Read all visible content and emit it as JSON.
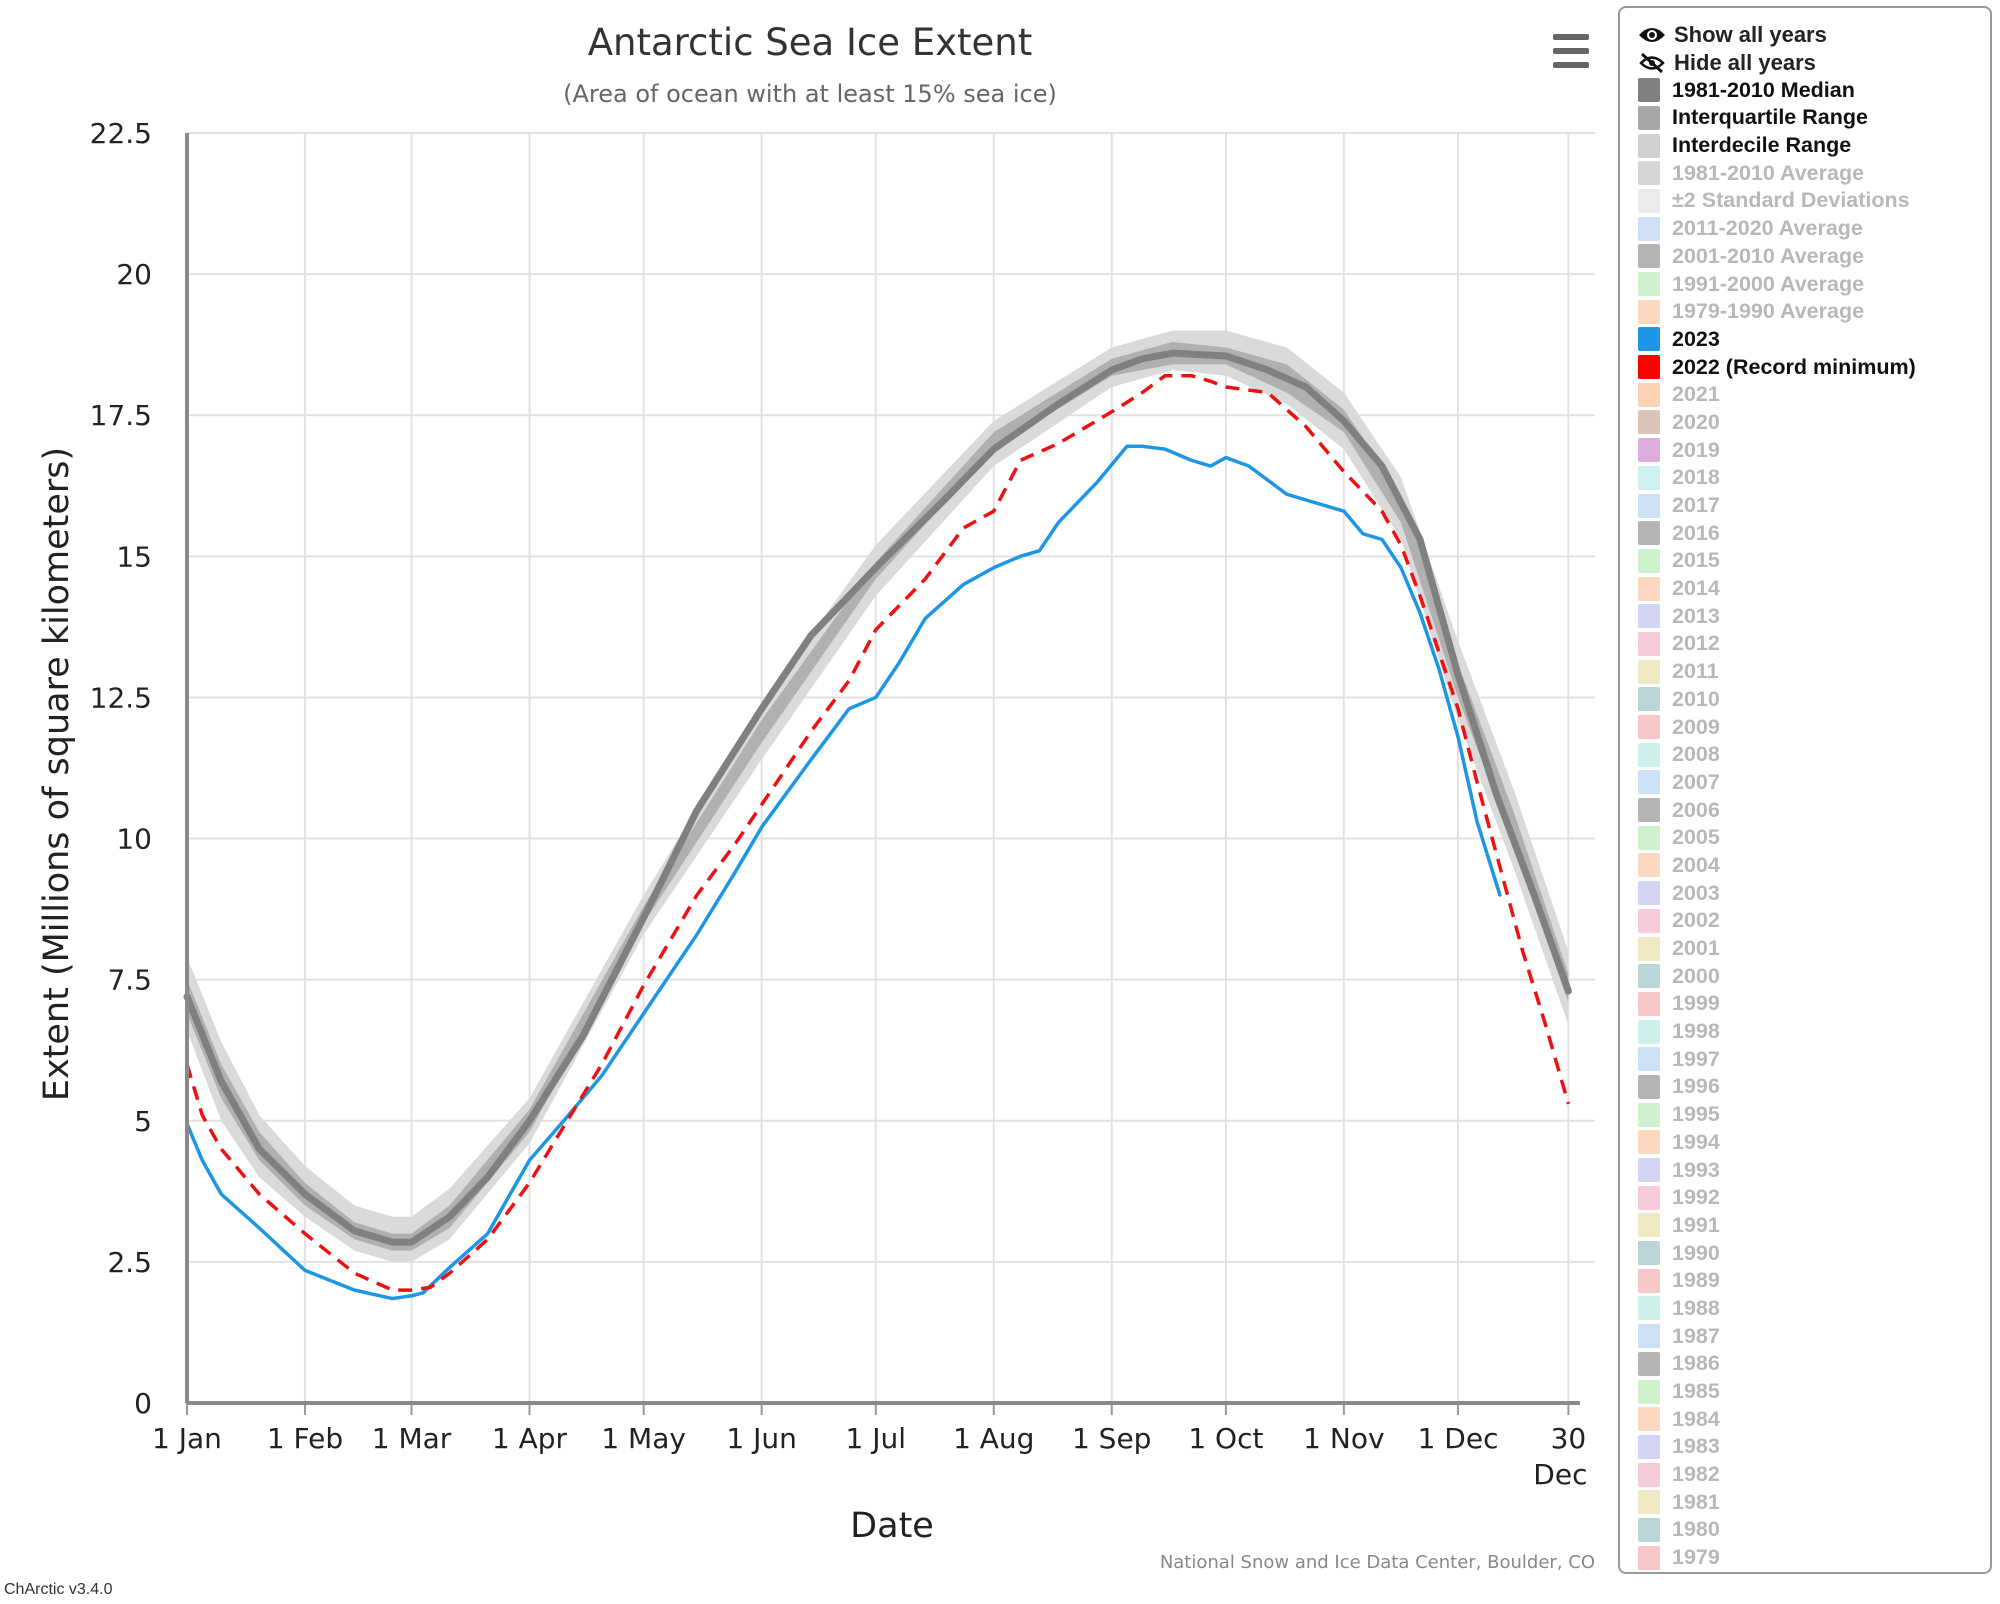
{
  "chart_data": {
    "type": "line",
    "title": "Antarctic Sea Ice Extent",
    "subtitle": "(Area of ocean with at least 15% sea ice)",
    "xlabel": "Date",
    "ylabel": "Extent (Millions of square kilometers)",
    "ylim": [
      0,
      22.5
    ],
    "xlim_days": [
      1,
      366
    ],
    "y_ticks": [
      "0",
      "2.5",
      "5",
      "7.5",
      "10",
      "12.5",
      "15",
      "17.5",
      "20",
      "22.5"
    ],
    "x_ticks": [
      {
        "label": "1 Jan",
        "day": 1
      },
      {
        "label": "1 Feb",
        "day": 32
      },
      {
        "label": "1 Mar",
        "day": 60
      },
      {
        "label": "1 Apr",
        "day": 91
      },
      {
        "label": "1 May",
        "day": 121
      },
      {
        "label": "1 Jun",
        "day": 152
      },
      {
        "label": "1 Jul",
        "day": 182
      },
      {
        "label": "1 Aug",
        "day": 213
      },
      {
        "label": "1 Sep",
        "day": 244
      },
      {
        "label": "1 Oct",
        "day": 274
      },
      {
        "label": "1 Nov",
        "day": 305
      },
      {
        "label": "1 Dec",
        "day": 335
      },
      {
        "label": "30",
        "sublabel": "Dec",
        "day": 364
      }
    ],
    "grid": true,
    "credits": "National Snow and Ice Data Center, Boulder, CO",
    "series": [
      {
        "name": "Interdecile Range",
        "kind": "band",
        "color": "#dadada",
        "x": [
          1,
          10,
          20,
          32,
          45,
          55,
          60,
          70,
          91,
          121,
          152,
          182,
          213,
          244,
          260,
          274,
          290,
          305,
          320,
          335,
          350,
          364
        ],
        "low": [
          6.6,
          5.0,
          4.0,
          3.3,
          2.7,
          2.5,
          2.5,
          2.9,
          4.6,
          8.3,
          11.4,
          14.3,
          16.6,
          18.0,
          18.3,
          18.2,
          17.7,
          16.9,
          15.3,
          12.1,
          9.4,
          6.7
        ],
        "high": [
          7.9,
          6.4,
          5.1,
          4.2,
          3.5,
          3.3,
          3.3,
          3.8,
          5.4,
          9.0,
          12.4,
          15.2,
          17.4,
          18.7,
          19.0,
          19.0,
          18.7,
          17.9,
          16.4,
          13.5,
          10.8,
          8.0
        ]
      },
      {
        "name": "Interquartile Range",
        "kind": "band",
        "color": "#b0b0b0",
        "x": [
          1,
          10,
          20,
          32,
          45,
          55,
          60,
          70,
          91,
          121,
          152,
          182,
          213,
          244,
          260,
          274,
          290,
          305,
          320,
          335,
          350,
          364
        ],
        "low": [
          6.9,
          5.4,
          4.3,
          3.5,
          2.9,
          2.7,
          2.7,
          3.1,
          4.8,
          8.5,
          11.7,
          14.6,
          16.9,
          18.2,
          18.4,
          18.4,
          17.9,
          17.2,
          15.6,
          12.5,
          9.8,
          7.1
        ],
        "high": [
          7.5,
          6.0,
          4.8,
          3.9,
          3.2,
          3.0,
          3.0,
          3.5,
          5.2,
          8.8,
          12.1,
          14.9,
          17.2,
          18.5,
          18.8,
          18.7,
          18.4,
          17.6,
          16.1,
          13.1,
          10.4,
          7.6
        ]
      },
      {
        "name": "1981-2010 Median",
        "kind": "line",
        "color": "#808080",
        "x": [
          1,
          10,
          20,
          32,
          45,
          55,
          60,
          70,
          80,
          91,
          105,
          121,
          135,
          152,
          165,
          182,
          200,
          213,
          230,
          244,
          252,
          260,
          274,
          285,
          295,
          305,
          315,
          325,
          335,
          345,
          355,
          364
        ],
        "values": [
          7.2,
          5.7,
          4.5,
          3.7,
          3.05,
          2.85,
          2.85,
          3.3,
          4.0,
          5.0,
          6.5,
          8.6,
          10.5,
          12.3,
          13.6,
          14.8,
          16.0,
          16.9,
          17.7,
          18.3,
          18.5,
          18.6,
          18.55,
          18.3,
          18.0,
          17.4,
          16.6,
          15.3,
          12.9,
          10.8,
          9.0,
          7.3
        ]
      },
      {
        "name": "2023",
        "kind": "line",
        "color": "#1d96e6",
        "x": [
          1,
          5,
          10,
          20,
          32,
          45,
          55,
          60,
          63,
          70,
          80,
          91,
          100,
          110,
          121,
          135,
          145,
          152,
          165,
          175,
          182,
          188,
          195,
          205,
          213,
          220,
          225,
          230,
          240,
          248,
          252,
          258,
          265,
          270,
          274,
          280,
          290,
          300,
          305,
          310,
          315,
          320,
          325,
          330,
          335,
          340,
          346
        ],
        "values": [
          4.95,
          4.3,
          3.7,
          3.1,
          2.35,
          2.0,
          1.85,
          1.9,
          1.95,
          2.4,
          3.0,
          4.3,
          5.0,
          5.8,
          6.9,
          8.3,
          9.4,
          10.2,
          11.4,
          12.3,
          12.5,
          13.1,
          13.9,
          14.5,
          14.8,
          15.0,
          15.1,
          15.6,
          16.3,
          16.95,
          16.95,
          16.9,
          16.7,
          16.6,
          16.75,
          16.6,
          16.1,
          15.9,
          15.8,
          15.4,
          15.3,
          14.8,
          14.0,
          13.0,
          11.8,
          10.3,
          9.0
        ]
      },
      {
        "name": "2022 (Record minimum)",
        "kind": "line",
        "dashed": true,
        "color": "#ee1111",
        "x": [
          1,
          5,
          10,
          20,
          32,
          45,
          55,
          60,
          65,
          70,
          80,
          91,
          100,
          110,
          121,
          135,
          145,
          152,
          165,
          175,
          182,
          195,
          205,
          213,
          220,
          230,
          240,
          245,
          252,
          258,
          265,
          270,
          274,
          285,
          295,
          305,
          315,
          320,
          325,
          330,
          335,
          340,
          346,
          352,
          358,
          364
        ],
        "values": [
          6.0,
          5.1,
          4.5,
          3.7,
          3.0,
          2.3,
          2.0,
          2.0,
          2.05,
          2.3,
          2.9,
          3.9,
          4.9,
          6.0,
          7.4,
          9.0,
          9.9,
          10.6,
          11.9,
          12.8,
          13.7,
          14.6,
          15.5,
          15.8,
          16.7,
          17.0,
          17.4,
          17.6,
          17.9,
          18.2,
          18.2,
          18.1,
          18.0,
          17.9,
          17.3,
          16.5,
          15.8,
          15.2,
          14.3,
          13.3,
          12.3,
          11.0,
          9.5,
          8.0,
          6.7,
          5.3
        ]
      }
    ]
  },
  "menu": {
    "icon": "hamburger-menu-icon"
  },
  "legend": {
    "show_all": "Show all years",
    "hide_all": "Hide all years",
    "items": [
      {
        "label": "1981-2010 Median",
        "color": "#808080",
        "visible": true
      },
      {
        "label": "Interquartile Range",
        "color": "#a8a8a8",
        "visible": true
      },
      {
        "label": "Interdecile Range",
        "color": "#d0d0d0",
        "visible": true
      },
      {
        "label": "1981-2010 Average",
        "color": "#d6d6d6",
        "visible": false
      },
      {
        "label": "±2 Standard Deviations",
        "color": "#ebebeb",
        "visible": false
      },
      {
        "label": "2011-2020 Average",
        "color": "#cfe0f6",
        "visible": false
      },
      {
        "label": "2001-2010 Average",
        "color": "#b4b4b4",
        "visible": false
      },
      {
        "label": "1991-2000 Average",
        "color": "#cdf2cd",
        "visible": false
      },
      {
        "label": "1979-1990 Average",
        "color": "#fbd9c1",
        "visible": false
      },
      {
        "label": "2023",
        "color": "#1d96e6",
        "visible": true
      },
      {
        "label": "2022 (Record minimum)",
        "color": "#ff0000",
        "visible": true
      },
      {
        "label": "2021",
        "color": "#fbd2b4",
        "visible": false
      },
      {
        "label": "2020",
        "color": "#dcc3b8",
        "visible": false
      },
      {
        "label": "2019",
        "color": "#dcadde",
        "visible": false
      },
      {
        "label": "2018",
        "color": "#cef1f1",
        "visible": false
      },
      {
        "label": "2017",
        "color": "#cde1f6",
        "visible": false
      },
      {
        "label": "2016",
        "color": "#b4b4b4",
        "visible": false
      },
      {
        "label": "2015",
        "color": "#cdf2cd",
        "visible": false
      },
      {
        "label": "2014",
        "color": "#fbd9c1",
        "visible": false
      },
      {
        "label": "2013",
        "color": "#d3d3f6",
        "visible": false
      },
      {
        "label": "2012",
        "color": "#f8cbd8",
        "visible": false
      },
      {
        "label": "2011",
        "color": "#efe9c4",
        "visible": false
      },
      {
        "label": "2010",
        "color": "#b9d5d5",
        "visible": false
      },
      {
        "label": "2009",
        "color": "#f8c8c8",
        "visible": false
      },
      {
        "label": "2008",
        "color": "#cef1eb",
        "visible": false
      },
      {
        "label": "2007",
        "color": "#cde1f6",
        "visible": false
      },
      {
        "label": "2006",
        "color": "#b4b4b4",
        "visible": false
      },
      {
        "label": "2005",
        "color": "#cdf2cd",
        "visible": false
      },
      {
        "label": "2004",
        "color": "#fbd9c1",
        "visible": false
      },
      {
        "label": "2003",
        "color": "#d3d3f6",
        "visible": false
      },
      {
        "label": "2002",
        "color": "#f8cbd8",
        "visible": false
      },
      {
        "label": "2001",
        "color": "#efe9c4",
        "visible": false
      },
      {
        "label": "2000",
        "color": "#b9d5d5",
        "visible": false
      },
      {
        "label": "1999",
        "color": "#f8c8c8",
        "visible": false
      },
      {
        "label": "1998",
        "color": "#cef1eb",
        "visible": false
      },
      {
        "label": "1997",
        "color": "#cde1f6",
        "visible": false
      },
      {
        "label": "1996",
        "color": "#b4b4b4",
        "visible": false
      },
      {
        "label": "1995",
        "color": "#cdf2cd",
        "visible": false
      },
      {
        "label": "1994",
        "color": "#fbd9c1",
        "visible": false
      },
      {
        "label": "1993",
        "color": "#d3d3f6",
        "visible": false
      },
      {
        "label": "1992",
        "color": "#f8cbd8",
        "visible": false
      },
      {
        "label": "1991",
        "color": "#efe9c4",
        "visible": false
      },
      {
        "label": "1990",
        "color": "#b9d5d5",
        "visible": false
      },
      {
        "label": "1989",
        "color": "#f8c8c8",
        "visible": false
      },
      {
        "label": "1988",
        "color": "#cef1eb",
        "visible": false
      },
      {
        "label": "1987",
        "color": "#cde1f6",
        "visible": false
      },
      {
        "label": "1986",
        "color": "#b4b4b4",
        "visible": false
      },
      {
        "label": "1985",
        "color": "#cdf2cd",
        "visible": false
      },
      {
        "label": "1984",
        "color": "#fbd9c1",
        "visible": false
      },
      {
        "label": "1983",
        "color": "#d3d3f6",
        "visible": false
      },
      {
        "label": "1982",
        "color": "#f8cbd8",
        "visible": false
      },
      {
        "label": "1981",
        "color": "#efe9c4",
        "visible": false
      },
      {
        "label": "1980",
        "color": "#b9d5d5",
        "visible": false
      },
      {
        "label": "1979",
        "color": "#f8c8c8",
        "visible": false
      }
    ]
  },
  "footer": {
    "version": "ChArctic v3.4.0"
  }
}
